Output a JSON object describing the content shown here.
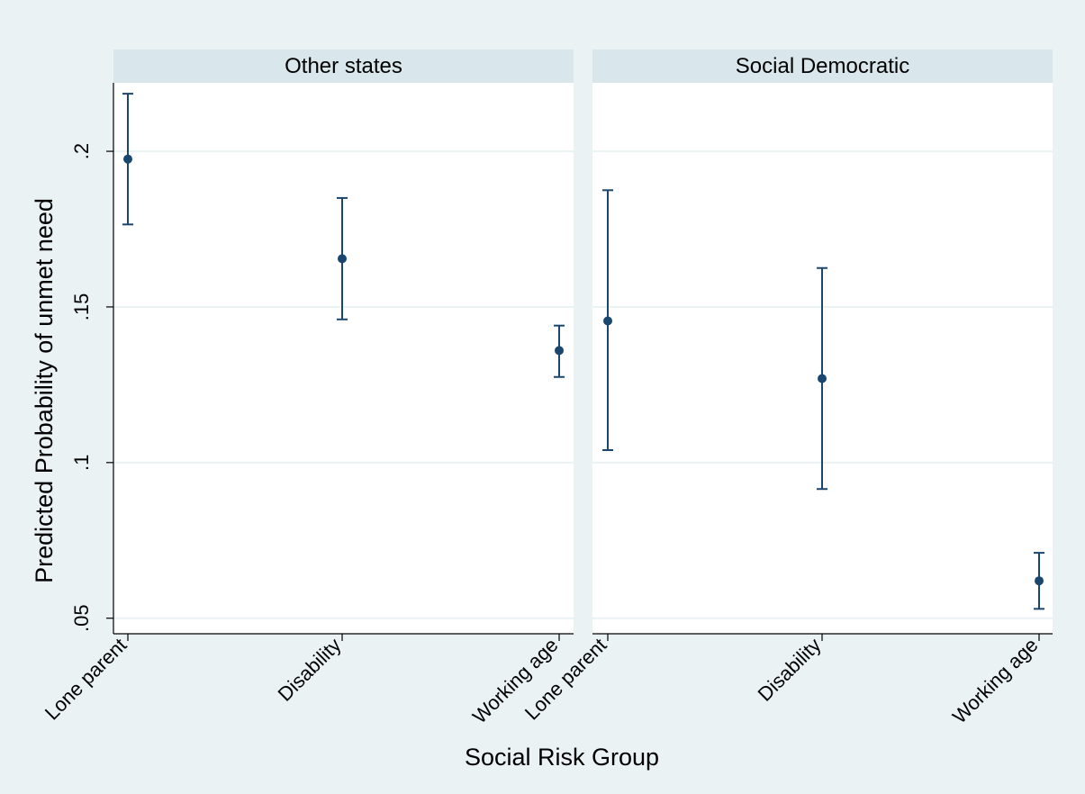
{
  "chart_data": {
    "type": "scatter",
    "subtype": "point-estimate-with-confidence-intervals",
    "xlabel": "Social Risk Group",
    "ylabel": "Predicted Probability of unmet need",
    "categories": [
      "Lone parent",
      "Disability",
      "Working age"
    ],
    "y_ticks": [
      ".05",
      ".1",
      ".15",
      ".2"
    ],
    "y_tick_values": [
      0.05,
      0.1,
      0.15,
      0.2
    ],
    "ylim": [
      0.045,
      0.222
    ],
    "grid": true,
    "legend": "none",
    "panels": [
      {
        "title": "Other states",
        "points": [
          {
            "category": "Lone parent",
            "estimate": 0.1975,
            "ci_low": 0.1765,
            "ci_high": 0.2185
          },
          {
            "category": "Disability",
            "estimate": 0.1655,
            "ci_low": 0.146,
            "ci_high": 0.185
          },
          {
            "category": "Working age",
            "estimate": 0.136,
            "ci_low": 0.1275,
            "ci_high": 0.144
          }
        ]
      },
      {
        "title": "Social Democratic",
        "points": [
          {
            "category": "Lone parent",
            "estimate": 0.1455,
            "ci_low": 0.104,
            "ci_high": 0.1875
          },
          {
            "category": "Disability",
            "estimate": 0.127,
            "ci_low": 0.0915,
            "ci_high": 0.1625
          },
          {
            "category": "Working age",
            "estimate": 0.062,
            "ci_low": 0.053,
            "ci_high": 0.071
          }
        ]
      }
    ],
    "colors": {
      "outer_background": "#eaf2f3",
      "plot_background": "#ffffff",
      "panel_header": "#d9e6eb",
      "gridline": "#eaf2f3",
      "marker": "#1a476f",
      "axis": "#000000"
    }
  }
}
